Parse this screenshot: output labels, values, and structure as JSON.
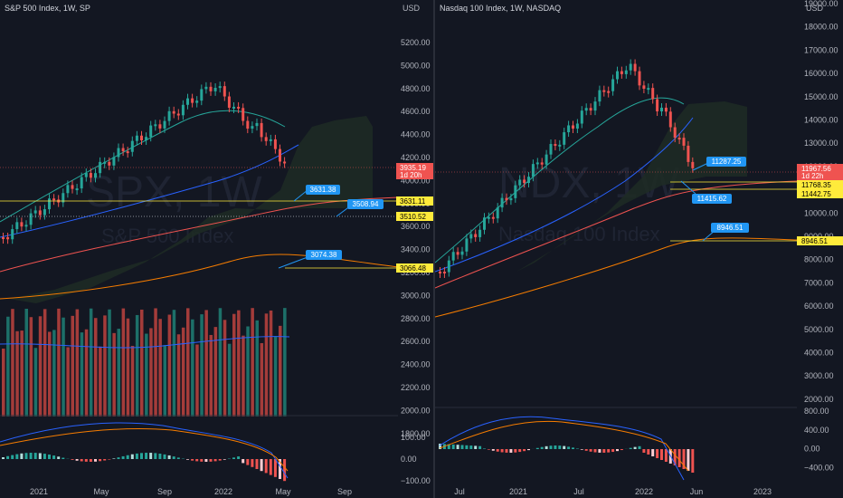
{
  "left": {
    "title": "S&P 500 Index, 1W, SP",
    "currency": "USD",
    "watermark_symbol": "SPX, 1W",
    "watermark_name": "S&P 500 Index",
    "price_ticks": [
      "5200.00",
      "5000.00",
      "4800.00",
      "4600.00",
      "4400.00",
      "4200.00",
      "4000.00",
      "3800.00",
      "3600.00",
      "3400.00",
      "3200.00",
      "3000.00",
      "2800.00",
      "2600.00",
      "2400.00",
      "2200.00",
      "2000.00",
      "1800.00"
    ],
    "osc_ticks": [
      "100.00",
      "0.00",
      "−100.00"
    ],
    "dates": [
      "2021",
      "May",
      "Sep",
      "2022",
      "May",
      "Sep"
    ],
    "last_price": "3935.19",
    "countdown": "1d 20h",
    "level_labels": [
      "3631.11",
      "3510.52",
      "3066.48"
    ],
    "callouts": [
      "3631.38",
      "3508.94",
      "3074.38"
    ]
  },
  "right": {
    "title": "Nasdaq 100 Index, 1W, NASDAQ",
    "currency": "USD",
    "watermark_symbol": "NDX, 1W",
    "watermark_name": "Nasdaq 100 Index",
    "price_ticks": [
      "19000.00",
      "18000.00",
      "17000.00",
      "16000.00",
      "15000.00",
      "14000.00",
      "13000.00",
      "12000.00",
      "11000.00",
      "10000.00",
      "9000.00",
      "8000.00",
      "7000.00",
      "6000.00",
      "5000.00",
      "4000.00",
      "3000.00",
      "2000.00"
    ],
    "osc_ticks": [
      "800.00",
      "400.00",
      "0.00",
      "−400.00"
    ],
    "dates": [
      "Jul",
      "2021",
      "Jul",
      "2022",
      "Jun",
      "2023"
    ],
    "last_price": "11967.56",
    "countdown": "1d 22h",
    "level_labels": [
      "11768.35",
      "11442.75",
      "8946.51"
    ],
    "callouts": [
      "11287.25",
      "11415.62",
      "8946.51"
    ]
  },
  "colors": {
    "bg": "#131722",
    "up": "#26a69a",
    "down": "#ef5350",
    "level_box": "#ffeb3b",
    "callout": "#2196f3",
    "cloud": "#2e3c33"
  }
}
